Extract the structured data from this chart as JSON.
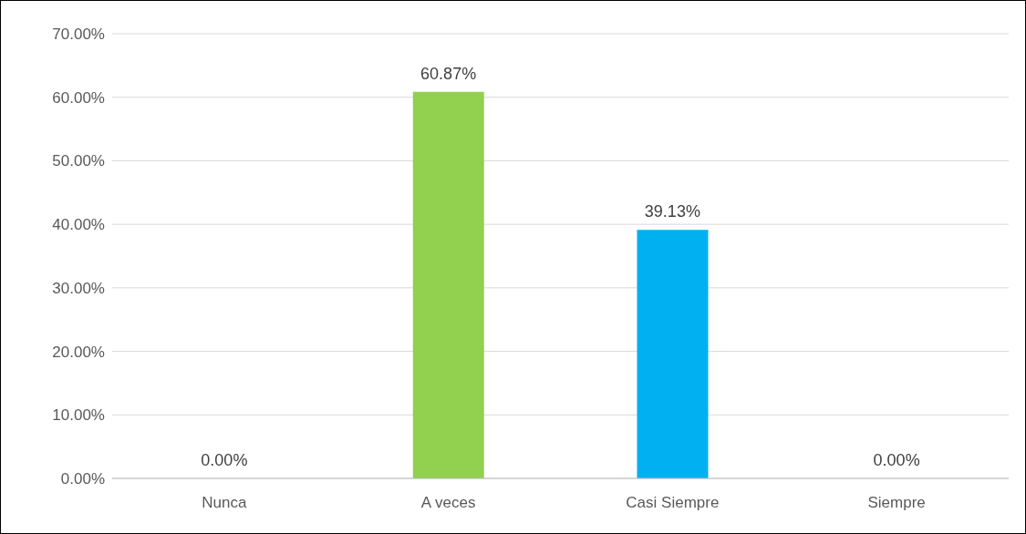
{
  "chart_data": {
    "type": "bar",
    "categories": [
      "Nunca",
      "A veces",
      "Casi Siempre",
      "Siempre"
    ],
    "values": [
      0,
      60.87,
      39.13,
      0
    ],
    "colors": [
      "#92d050",
      "#92d050",
      "#00b0f0",
      "#00b0f0"
    ],
    "value_labels": [
      "0.00%",
      "60.87%",
      "39.13%",
      "0.00%"
    ],
    "ylim": [
      0,
      70
    ],
    "yticks": [
      {
        "value": 0,
        "label": "0.00%"
      },
      {
        "value": 10,
        "label": "10.00%"
      },
      {
        "value": 20,
        "label": "20.00%"
      },
      {
        "value": 30,
        "label": "30.00%"
      },
      {
        "value": 40,
        "label": "40.00%"
      },
      {
        "value": 50,
        "label": "50.00%"
      },
      {
        "value": 60,
        "label": "60.00%"
      },
      {
        "value": 70,
        "label": "70.00%"
      }
    ],
    "grid": "y",
    "legend": false
  }
}
